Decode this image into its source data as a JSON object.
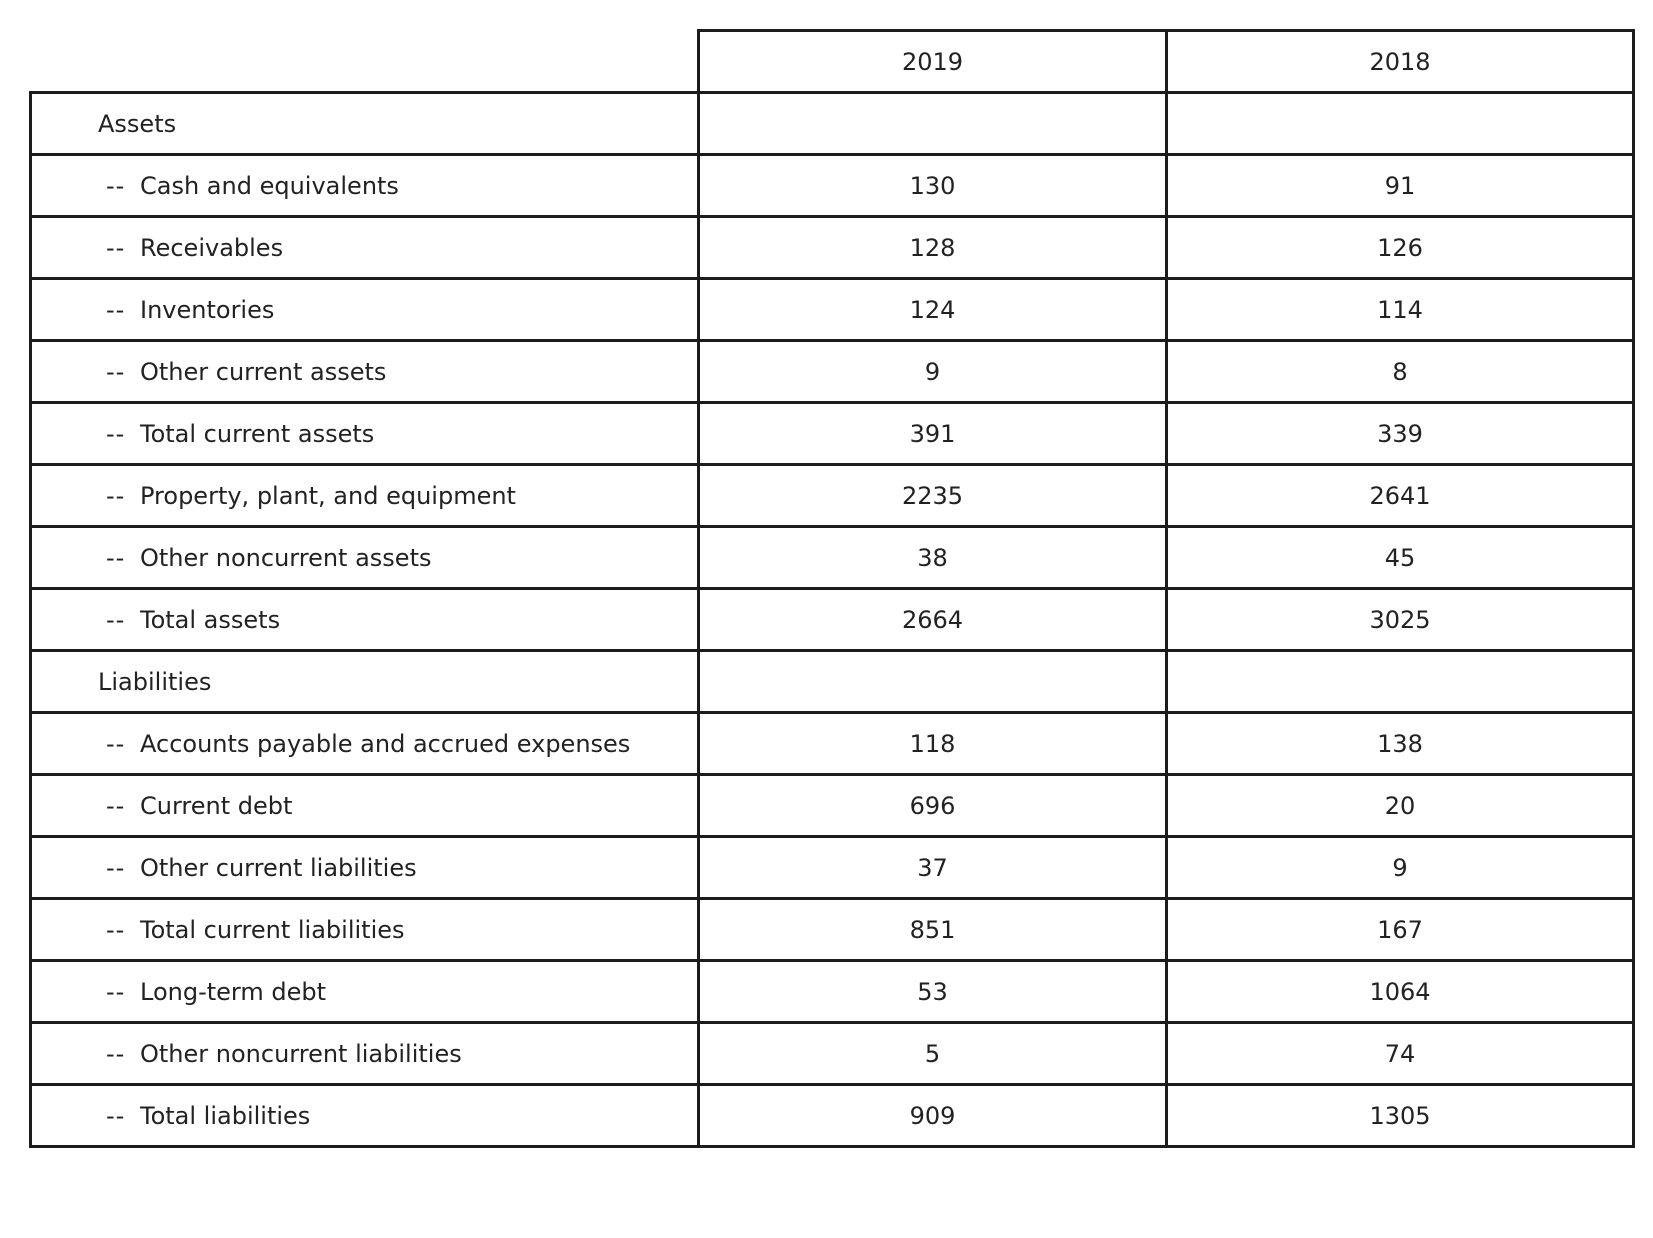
{
  "table": {
    "columns": [
      "2019",
      "2018"
    ],
    "sections": [
      {
        "heading": "Assets",
        "rows": [
          {
            "label": "Cash and equivalents",
            "values": [
              "130",
              "91"
            ]
          },
          {
            "label": "Receivables",
            "values": [
              "128",
              "126"
            ]
          },
          {
            "label": "Inventories",
            "values": [
              "124",
              "114"
            ]
          },
          {
            "label": "Other current assets",
            "values": [
              "9",
              "8"
            ]
          },
          {
            "label": "Total current assets",
            "values": [
              "391",
              "339"
            ]
          },
          {
            "label": "Property, plant, and equipment",
            "values": [
              "2235",
              "2641"
            ]
          },
          {
            "label": "Other noncurrent assets",
            "values": [
              "38",
              "45"
            ]
          },
          {
            "label": "Total assets",
            "values": [
              "2664",
              "3025"
            ]
          }
        ]
      },
      {
        "heading": "Liabilities",
        "rows": [
          {
            "label": "Accounts payable and accrued expenses",
            "values": [
              "118",
              "138"
            ]
          },
          {
            "label": "Current debt",
            "values": [
              "696",
              "20"
            ]
          },
          {
            "label": "Other current liabilities",
            "values": [
              "37",
              "9"
            ]
          },
          {
            "label": "Total current liabilities",
            "values": [
              "851",
              "167"
            ]
          },
          {
            "label": "Long-term debt",
            "values": [
              "53",
              "1064"
            ]
          },
          {
            "label": "Other noncurrent liabilities",
            "values": [
              "5",
              "74"
            ]
          },
          {
            "label": "Total liabilities",
            "values": [
              "909",
              "1305"
            ]
          }
        ]
      }
    ],
    "item_prefix": "--"
  }
}
